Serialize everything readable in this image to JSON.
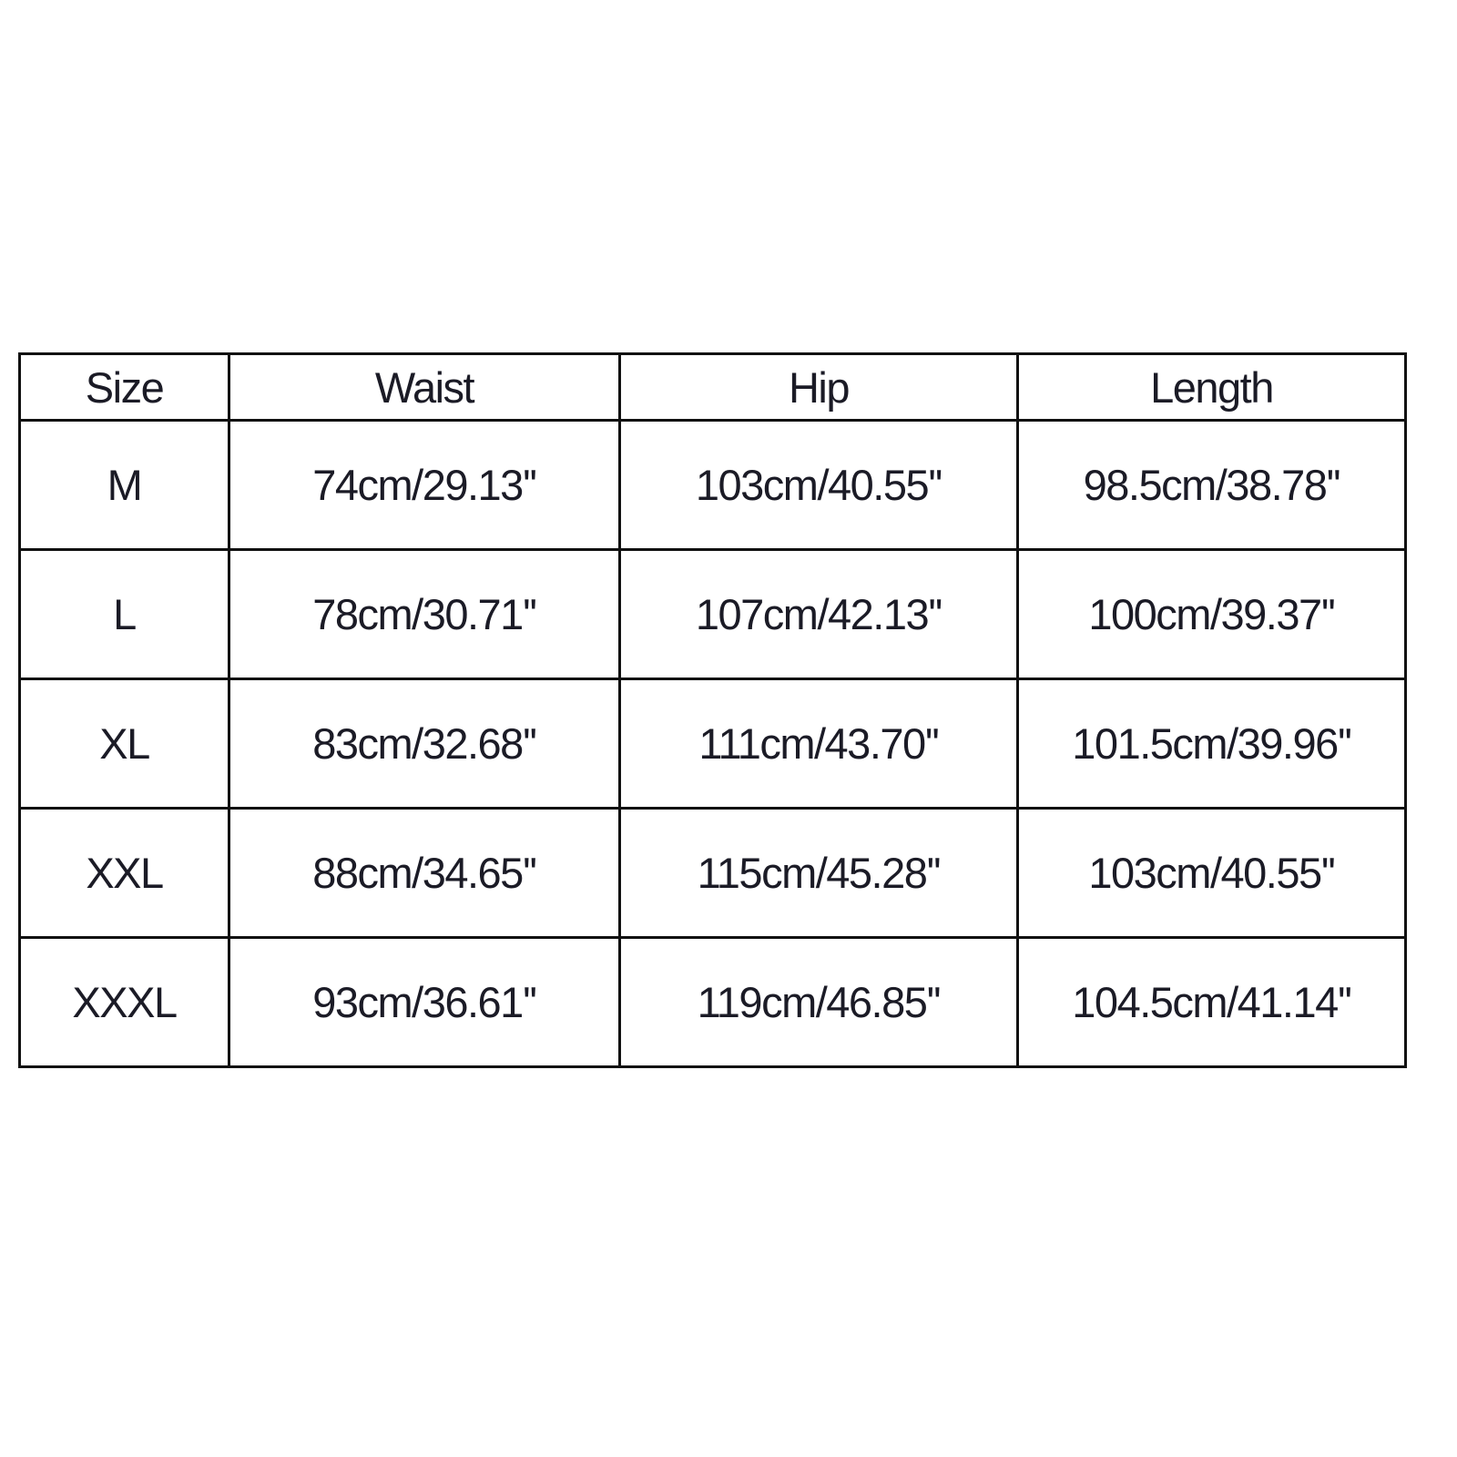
{
  "table": {
    "headers": [
      "Size",
      "Waist",
      "Hip",
      "Length"
    ],
    "rows": [
      [
        "M",
        "74cm/29.13''",
        "103cm/40.55''",
        "98.5cm/38.78''"
      ],
      [
        "L",
        "78cm/30.71''",
        "107cm/42.13''",
        "100cm/39.37''"
      ],
      [
        "XL",
        "83cm/32.68''",
        "111cm/43.70''",
        "101.5cm/39.96''"
      ],
      [
        "XXL",
        "88cm/34.65''",
        "115cm/45.28''",
        "103cm/40.55''"
      ],
      [
        "XXXL",
        "93cm/36.61''",
        "119cm/46.85''",
        "104.5cm/41.14''"
      ]
    ]
  }
}
